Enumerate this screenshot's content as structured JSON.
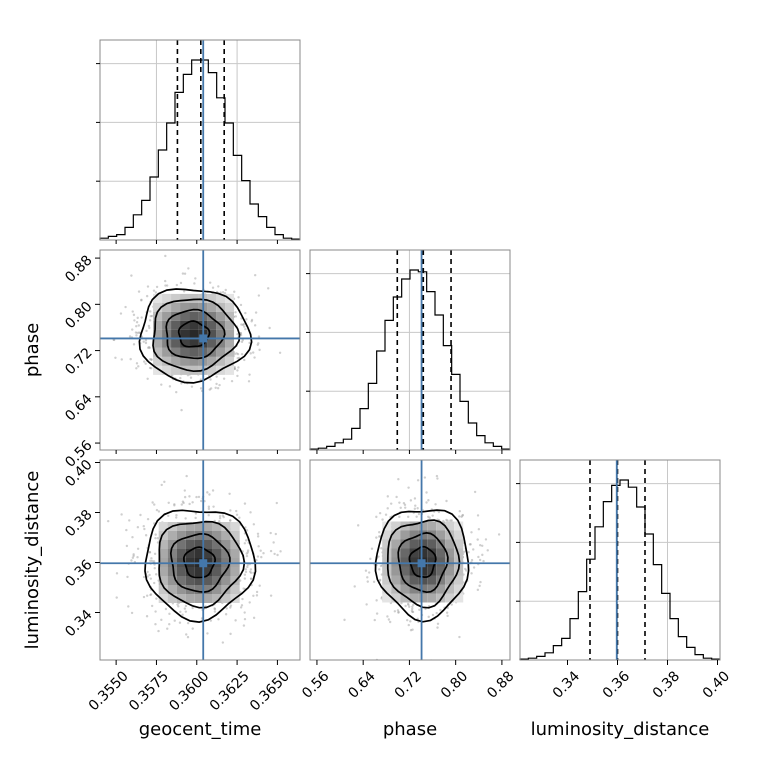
{
  "chart_data": {
    "type": "corner",
    "parameters": [
      "geocent_time",
      "phase",
      "luminosity_distance"
    ],
    "axes": {
      "geocent_time": {
        "label": "geocent_time",
        "range": [
          0.354,
          0.3664
        ],
        "ticks": [
          0.355,
          0.3575,
          0.36,
          0.3625,
          0.365
        ],
        "tick_labels": [
          "0.3550",
          "0.3575",
          "0.3600",
          "0.3625",
          "0.3650"
        ]
      },
      "phase": {
        "label": "phase",
        "range": [
          0.548,
          0.894
        ],
        "ticks": [
          0.56,
          0.64,
          0.72,
          0.8,
          0.88
        ],
        "tick_labels": [
          "0.56",
          "0.64",
          "0.72",
          "0.80",
          "0.88"
        ]
      },
      "luminosity_distance": {
        "label": "luminosity_distance",
        "range": [
          0.321,
          0.401
        ],
        "ticks": [
          0.34,
          0.36,
          0.38,
          0.4
        ],
        "tick_labels": [
          "0.34",
          "0.36",
          "0.38",
          "0.40"
        ]
      }
    },
    "injection": {
      "geocent_time": 0.3604,
      "phase": 0.741,
      "luminosity_distance": 0.3597
    },
    "histograms": {
      "geocent_time": {
        "edges_range": [
          0.354,
          0.3664
        ],
        "counts": [
          0.01,
          0.02,
          0.03,
          0.07,
          0.14,
          0.22,
          0.35,
          0.5,
          0.65,
          0.82,
          0.92,
          1.0,
          1.0,
          0.93,
          0.79,
          0.65,
          0.47,
          0.33,
          0.2,
          0.13,
          0.07,
          0.03,
          0.01,
          0.005
        ],
        "quantiles": [
          0.3588,
          0.36025,
          0.3617
        ],
        "gridlines": [
          0.3575,
          0.3625
        ],
        "hgrid": [
          0.3,
          0.6,
          0.9
        ]
      },
      "phase": {
        "edges_range": [
          0.548,
          0.894
        ],
        "counts": [
          0.005,
          0.01,
          0.02,
          0.04,
          0.06,
          0.12,
          0.23,
          0.37,
          0.55,
          0.72,
          0.85,
          0.95,
          1.0,
          0.99,
          0.88,
          0.75,
          0.58,
          0.42,
          0.27,
          0.15,
          0.08,
          0.04,
          0.02,
          0.005
        ],
        "quantiles": [
          0.699,
          0.744,
          0.792
        ],
        "gridlines": [
          0.72
        ],
        "hgrid": [
          0.3,
          0.6,
          0.9
        ]
      },
      "luminosity_distance": {
        "edges_range": [
          0.321,
          0.401
        ],
        "counts": [
          0.005,
          0.01,
          0.02,
          0.04,
          0.08,
          0.12,
          0.23,
          0.38,
          0.56,
          0.74,
          0.88,
          0.97,
          1.0,
          0.96,
          0.85,
          0.7,
          0.53,
          0.37,
          0.23,
          0.13,
          0.07,
          0.03,
          0.01,
          0.005
        ],
        "quantiles": [
          0.349,
          0.36,
          0.371
        ],
        "gridlines": [
          0.36,
          0.38
        ],
        "hgrid": [
          0.3,
          0.6,
          0.9
        ]
      }
    },
    "joint": [
      {
        "x": "geocent_time",
        "y": "phase",
        "center": [
          0.3598,
          0.748
        ],
        "sigma": [
          0.0017,
          0.04
        ]
      },
      {
        "x": "geocent_time",
        "y": "luminosity_distance",
        "center": [
          0.36015,
          0.36
        ],
        "sigma": [
          0.0017,
          0.011
        ]
      },
      {
        "x": "phase",
        "y": "luminosity_distance",
        "center": [
          0.743,
          0.3602
        ],
        "sigma": [
          0.04,
          0.011
        ]
      }
    ],
    "colors": {
      "histogram": "#000000",
      "injection": "#4477aa",
      "density": "#000000",
      "scatter": "#a0a0a0",
      "grid": "#c8c8c8",
      "frame": "#888888"
    }
  }
}
